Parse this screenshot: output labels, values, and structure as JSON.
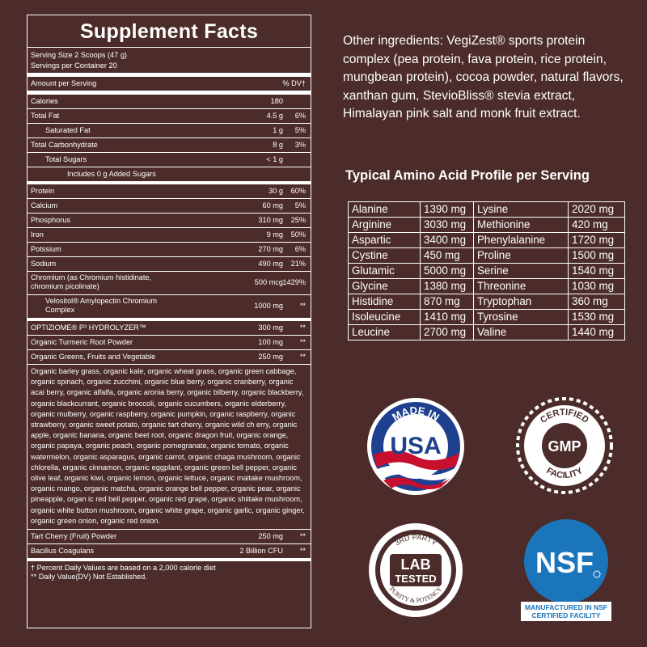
{
  "facts": {
    "title": "Supplement Facts",
    "serving_size": "Serving Size 2 Scoops (47 g)",
    "servings_per_container": "Servings per Container 20",
    "amount_header": "Amount per Serving",
    "dv_header": "% DV†",
    "rows": [
      {
        "name": "Calories",
        "amount": "180",
        "dv": ""
      },
      {
        "name": "Total Fat",
        "amount": "4.5 g",
        "dv": "6%"
      },
      {
        "name": "Saturated Fat",
        "amount": "1 g",
        "dv": "5%"
      },
      {
        "name": "Total Carbonhydrate",
        "amount": "8 g",
        "dv": "3%"
      },
      {
        "name": "Total Sugars",
        "amount": "< 1 g",
        "dv": ""
      },
      {
        "name": "Includes 0 g Added Sugars",
        "amount": "",
        "dv": ""
      },
      {
        "name": "Protein",
        "amount": "30 g",
        "dv": "60%"
      },
      {
        "name": "Calcium",
        "amount": "60 mg",
        "dv": "5%"
      },
      {
        "name": "Phosphorus",
        "amount": "310 mg",
        "dv": "25%"
      },
      {
        "name": "Iron",
        "amount": "9 mg",
        "dv": "50%"
      },
      {
        "name": "Potssium",
        "amount": "270 mg",
        "dv": "6%"
      },
      {
        "name": "Sodium",
        "amount": "490 mg",
        "dv": "21%"
      },
      {
        "name": "Chromium (as Chromium histidinate, chromium picolinate)",
        "amount": "500 mcg",
        "dv": "1429%"
      },
      {
        "name": "Velositol® Amylopectin Chromium Complex",
        "amount": "1000 mg",
        "dv": "**"
      },
      {
        "name": "OPTIZIOME® P³ HYDROLYZER™",
        "amount": "300 mg",
        "dv": "**"
      },
      {
        "name": "Organic Turmeric Root Powder",
        "amount": "100 mg",
        "dv": "**"
      },
      {
        "name": "Organic Greens, Fruits and Vegetable",
        "amount": "250 mg",
        "dv": "**"
      }
    ],
    "blend": "Organic barley grass, organic kale, organic wheat grass, organic green cabbage, organic spinach, organic zucchini, organic blue berry, organic cranberry, organic acai berry, organic alfalfa, organic aronia berry, organic bilberry, organic blackberry, organic blackcurrant, organic broccoli, organic cucumbers, organic elderberry, organic mulberry, organic raspberry, organic pumpkin, organic raspberry, organic strawberry, organic sweet potato, organic tart cherry, organic wild ch erry, organic apple, organic banana, organic beet root, organic dragon fruit, organic orange, organic papaya, organic peach, organic pomegranate, organic tomato, organic watermelon, organic asparagus, organic carrot, organic chaga mushroom, organic chlorella, organic cinnamon, organic eggplant, organic green bell pepper, organic olive leaf, organic kiwi, organic lemon, organic lettuce, organic maitake mushroom, organic mango, organic matcha, organic orange bell pepper, organic pear, organic pineapple, organ ic red bell pepper, organic red grape, organic shiitake mushroom, organic white button mushroom, organic white grape, organic garlic, organic ginger, organic green onion, organic red onion.",
    "rows_after": [
      {
        "name": "Tart Cherry (Fruit) Powder",
        "amount": "250 mg",
        "dv": "**"
      },
      {
        "name": "Bacillus Coagulans",
        "amount": "2 Billion CFU",
        "dv": "**"
      }
    ],
    "footnote1": "† Percent Daily Values are based on a 2,000 calorie diet",
    "footnote2": "** Daily Value(DV) Not Established."
  },
  "other_ingredients": "Other ingredients: VegiZest® sports protein complex (pea protein, fava protein, rice protein, mungbean protein), cocoa powder, natural flavors, xanthan gum, StevioBliss® stevia extract, Himalayan pink salt and monk fruit extract.",
  "amino": {
    "title": "Typical Amino Acid Profile per Serving",
    "rows": [
      [
        "Alanine",
        "1390 mg",
        "Lysine",
        "2020 mg"
      ],
      [
        "Arginine",
        "3030 mg",
        "Methionine",
        "420 mg"
      ],
      [
        "Aspartic",
        "3400 mg",
        "Phenylalanine",
        "1720 mg"
      ],
      [
        "Cystine",
        "450 mg",
        "Proline",
        "1500 mg"
      ],
      [
        "Glutamic",
        "5000 mg",
        "Serine",
        "1540 mg"
      ],
      [
        "Glycine",
        "1380 mg",
        "Threonine",
        "1030 mg"
      ],
      [
        "Histidine",
        "870 mg",
        "Tryptophan",
        "360 mg"
      ],
      [
        "Isoleucine",
        "1410 mg",
        "Tyrosine",
        "1530 mg"
      ],
      [
        "Leucine",
        "2700 mg",
        "Valine",
        "1440 mg"
      ]
    ]
  },
  "badges": {
    "usa": {
      "top": "MADE IN",
      "main": "USA"
    },
    "gmp": {
      "top": "CERTIFIED",
      "main": "GMP",
      "bottom": "FACILITY"
    },
    "lab": {
      "top": "3RD PARTY",
      "main1": "LAB",
      "main2": "TESTED",
      "bottom": "PURITY & POTENCY"
    },
    "nsf": {
      "main": "NSF",
      "caption1": "MANUFACTURED IN NSF",
      "caption2": "CERTIFIED FACILITY"
    }
  },
  "colors": {
    "background": "#4b2c2a",
    "nsf_blue": "#1b75bb",
    "usa_blue": "#1f3f8f",
    "usa_red": "#c8102e"
  }
}
